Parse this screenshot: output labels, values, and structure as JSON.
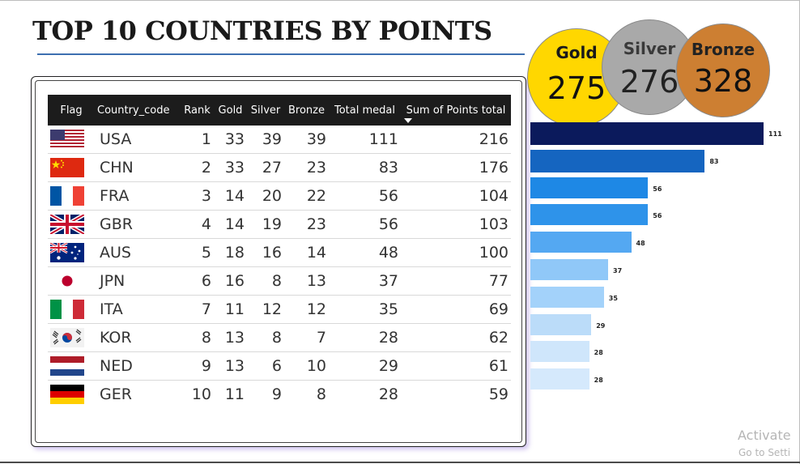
{
  "title": "TOP 10 COUNTRIES BY POINTS",
  "columns": [
    "Flag",
    "Country_code",
    "Rank",
    "Gold",
    "Silver",
    "Bronze",
    "Total medal",
    "Sum of Points total"
  ],
  "rows": [
    {
      "flag": "usa-flag-icon",
      "code": "USA",
      "rank": "1",
      "gold": "33",
      "silver": "39",
      "bronze": "39",
      "total": "111",
      "points": "216"
    },
    {
      "flag": "china-flag-icon",
      "code": "CHN",
      "rank": "2",
      "gold": "33",
      "silver": "27",
      "bronze": "23",
      "total": "83",
      "points": "176"
    },
    {
      "flag": "france-flag-icon",
      "code": "FRA",
      "rank": "3",
      "gold": "14",
      "silver": "20",
      "bronze": "22",
      "total": "56",
      "points": "104"
    },
    {
      "flag": "uk-flag-icon",
      "code": "GBR",
      "rank": "4",
      "gold": "14",
      "silver": "19",
      "bronze": "23",
      "total": "56",
      "points": "103"
    },
    {
      "flag": "australia-flag-icon",
      "code": "AUS",
      "rank": "5",
      "gold": "18",
      "silver": "16",
      "bronze": "14",
      "total": "48",
      "points": "100"
    },
    {
      "flag": "japan-flag-icon",
      "code": "JPN",
      "rank": "6",
      "gold": "16",
      "silver": "8",
      "bronze": "13",
      "total": "37",
      "points": "77"
    },
    {
      "flag": "italy-flag-icon",
      "code": "ITA",
      "rank": "7",
      "gold": "11",
      "silver": "12",
      "bronze": "12",
      "total": "35",
      "points": "69"
    },
    {
      "flag": "korea-flag-icon",
      "code": "KOR",
      "rank": "8",
      "gold": "13",
      "silver": "8",
      "bronze": "7",
      "total": "28",
      "points": "62"
    },
    {
      "flag": "netherlands-flag-icon",
      "code": "NED",
      "rank": "9",
      "gold": "13",
      "silver": "6",
      "bronze": "10",
      "total": "29",
      "points": "61"
    },
    {
      "flag": "germany-flag-icon",
      "code": "GER",
      "rank": "10",
      "gold": "11",
      "silver": "9",
      "bronze": "8",
      "total": "28",
      "points": "59"
    }
  ],
  "medal_cards": {
    "gold": {
      "label": "Gold",
      "value": "275",
      "color": "#ffd700"
    },
    "silver": {
      "label": "Silver",
      "value": "276",
      "color": "#a9a9a9"
    },
    "bronze": {
      "label": "Bronze",
      "value": "328",
      "color": "#cd7f32"
    }
  },
  "chart_data": {
    "type": "bar",
    "orientation": "horizontal",
    "values": [
      111,
      83,
      56,
      56,
      48,
      37,
      35,
      29,
      28,
      28
    ],
    "data_labels": [
      "111",
      "83",
      "56",
      "56",
      "48",
      "37",
      "35",
      "29",
      "28",
      "28"
    ],
    "colors": [
      "#0b1a5c",
      "#1565c0",
      "#1e88e5",
      "#2e93ea",
      "#54a8f2",
      "#90c8f8",
      "#a3d2fa",
      "#bbdcf9",
      "#cfe6fb",
      "#d5e9fc"
    ]
  },
  "watermark": {
    "line1": "Activate",
    "line2": "Go to Setti"
  }
}
